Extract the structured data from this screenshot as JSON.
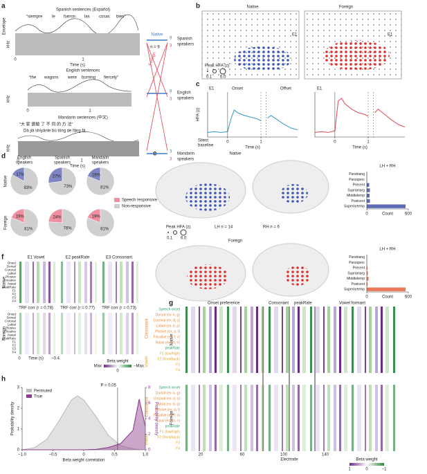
{
  "figure": {
    "panel_labels": [
      "a",
      "b",
      "c",
      "d",
      "e",
      "f",
      "g",
      "h"
    ]
  },
  "panel_a": {
    "spanish": {
      "title": "Spanish sentences (Español)",
      "words": [
        "“siempre",
        "le",
        "fueron",
        "las",
        "cosas",
        "bien”"
      ]
    },
    "english": {
      "title": "English sentences",
      "words": [
        "“the",
        "wagons",
        "were",
        "burning",
        "fiercely”"
      ]
    },
    "mandarin": {
      "title": "Mandarin sentences (中文)",
      "chars": "“大 家 實驗 了 不 同 的 方 法”",
      "pinyin": "Dà jiā shíyànle bù tóng de fāng fǎ"
    },
    "axis": {
      "envelope": "Envelope",
      "khz": "kHz",
      "time": "Time (s)",
      "t0": "0",
      "t1": "1"
    },
    "cross": {
      "native": "Native",
      "foreign": "Foreign",
      "n": "n = 9",
      "groups": [
        [
          "Spanish",
          "speakers"
        ],
        [
          "English",
          "speakers"
        ],
        [
          "Mandarin",
          "speakers"
        ]
      ],
      "native_counts": [
        "9",
        "8",
        "3"
      ],
      "foreign_counts": [
        "3",
        "3",
        "3"
      ]
    }
  },
  "panel_b": {
    "native": "Native",
    "foreign": "Foreign",
    "electrode": "E1",
    "size_title": "Peak HFA (z)",
    "size_min": "0.1",
    "size_max": "6.0"
  },
  "panel_c": {
    "electrode": "E1",
    "onset": "Onset",
    "offset": "Offset",
    "baseline": [
      "Silent",
      "baseline"
    ]
  },
  "panel_d": {
    "columns": [
      [
        "English",
        "speakers"
      ],
      [
        "Spanish",
        "speakers"
      ],
      [
        "Mandarin",
        "speakers"
      ]
    ],
    "rows": [
      "Native",
      "Foreign"
    ],
    "legend": [
      {
        "label": "Speech responsive",
        "color": "#ef8fa0"
      },
      {
        "label": "Non-responsive",
        "color": "#cfcfcf"
      }
    ]
  },
  "panel_e": {
    "native": "Native",
    "foreign": "Foreign",
    "lh": "LH n = 14",
    "rh": "RH n = 6",
    "size_title": "Peak HFA (z)",
    "size_min": "0.1",
    "size_max": "6.0"
  },
  "panel_f": {
    "titles": [
      "E1 Vowel",
      "E2 peakRate",
      "E3 Consonant"
    ],
    "features": [
      "Onset",
      "Dorsal",
      "Coronal",
      "Labial",
      "Plosive",
      "Fricative",
      "Nasal",
      "peakRate",
      "F1",
      "F2",
      "F3",
      "F4"
    ],
    "rows": [
      "Native",
      "Foreign"
    ],
    "corr": [
      "TRF corr (r = 0.78)",
      "TRF corr (r = 0.77)",
      "TRF corr (r = 0.73)"
    ],
    "t0": "0",
    "time": "Time (s)",
    "tend": "−0.4",
    "legend": {
      "title": "Beta weight",
      "max": "Max",
      "zero": "0",
      "min": "−Max"
    }
  },
  "panel_g": {
    "headers": [
      "Onset preference",
      "Consonant",
      "peakRate",
      "Vowel formant"
    ],
    "features": [
      "Speech onset",
      "Dorsal (ex. k, g)",
      "Coronal (ex. d, s)",
      "Labial (ex. b, p)",
      "Plosive (ex. p, t)",
      "Fricative (ex. f, v)",
      "Nasal (ex. m, n)",
      "peakRate",
      "F1 (low/high)",
      "F2 (front/back)",
      "F3",
      "F4"
    ],
    "groups": [
      "Consonant",
      "Vowel"
    ],
    "rows": [
      "Native",
      "Foreign"
    ],
    "xticks": [
      "20",
      "60",
      "100",
      "140"
    ],
    "xlabel": "Electrode",
    "legend": {
      "title": "Beta weight",
      "max": "1",
      "zero": "0",
      "min": "−1"
    }
  },
  "chart_data": [
    {
      "type": "pie",
      "values": [
        17,
        83
      ],
      "value_labels": [
        "17%",
        "83%"
      ],
      "colors": [
        "#7f86c4",
        "#cfcfcf"
      ]
    },
    {
      "type": "pie",
      "values": [
        27,
        73
      ],
      "value_labels": [
        "27%",
        "73%"
      ],
      "colors": [
        "#7f86c4",
        "#cfcfcf"
      ]
    },
    {
      "type": "pie",
      "values": [
        19,
        81
      ],
      "value_labels": [
        "19%",
        "81%"
      ],
      "colors": [
        "#7f86c4",
        "#cfcfcf"
      ]
    },
    {
      "type": "pie",
      "values": [
        19,
        81
      ],
      "value_labels": [
        "19%",
        "81%"
      ],
      "colors": [
        "#ef8fa0",
        "#cfcfcf"
      ]
    },
    {
      "type": "pie",
      "values": [
        24,
        76
      ],
      "value_labels": [
        "24%",
        "76%"
      ],
      "colors": [
        "#ef8fa0",
        "#cfcfcf"
      ]
    },
    {
      "type": "pie",
      "values": [
        19,
        81
      ],
      "value_labels": [
        "19%",
        "81%"
      ],
      "colors": [
        "#ef8fa0",
        "#cfcfcf"
      ]
    },
    {
      "type": "bar",
      "title": "LH + RH",
      "categories": [
        "Parstriang",
        "Parsoperc",
        "Precent",
        "Supramarg",
        "Middletemp",
        "Postcent",
        "Superiortemp"
      ],
      "values": [
        4,
        4,
        35,
        45,
        40,
        45,
        560
      ],
      "color": "#5b6cb4",
      "xlim": [
        0,
        600
      ],
      "xticks": [
        0,
        600
      ],
      "xlabel": "Count"
    },
    {
      "type": "bar",
      "title": "LH + RH",
      "categories": [
        "Parstriang",
        "Parsoperc",
        "Precent",
        "Supramarg",
        "Middletemp",
        "Postcent",
        "Superiortemp"
      ],
      "values": [
        3,
        3,
        10,
        15,
        25,
        12,
        560
      ],
      "color": "#ea7a5c",
      "xlim": [
        0,
        600
      ],
      "xticks": [
        0,
        600
      ],
      "xlabel": "Count"
    },
    {
      "type": "line",
      "x": [
        -0.6,
        -0.4,
        -0.2,
        0,
        0.1,
        0.2,
        0.3,
        0.5,
        0.7,
        0.9,
        1.0,
        1.1,
        1.2,
        1.3,
        1.5,
        1.7,
        1.9,
        2.1
      ],
      "series": [
        {
          "color": "#3a9fc8",
          "values": [
            0,
            0.1,
            0,
            0.1,
            1.5,
            2.5,
            2.2,
            1.9,
            1.7,
            1.5,
            1.3,
            null,
            1.6,
            1.9,
            1.4,
            0.9,
            0.5,
            0.3
          ]
        }
      ],
      "xlim": [
        -0.6,
        2.1
      ],
      "ylim": [
        -0.5,
        4.5
      ],
      "xticks": [
        0,
        1
      ],
      "xlabel": "Time (s)",
      "ylabel": "HFA (z)"
    },
    {
      "type": "line",
      "x": [
        -0.6,
        -0.4,
        -0.2,
        0,
        0.1,
        0.2,
        0.3,
        0.5,
        0.7,
        0.9,
        1.0,
        1.1,
        1.2,
        1.3,
        1.5,
        1.7,
        1.9,
        2.1
      ],
      "series": [
        {
          "color": "#e0505e",
          "values": [
            0,
            0.1,
            0,
            0.2,
            3.5,
            3.8,
            3.2,
            2.6,
            2.2,
            2.0,
            1.8,
            null,
            2.2,
            2.6,
            2.0,
            1.4,
            0.9,
            0.6
          ]
        }
      ],
      "xlim": [
        -0.6,
        2.1
      ],
      "ylim": [
        -0.5,
        4.5
      ],
      "xticks": [
        0,
        1
      ],
      "xlabel": "Time (s)"
    },
    {
      "type": "line",
      "fill": true,
      "x": [
        -1,
        -0.8,
        -0.6,
        -0.4,
        -0.2,
        -0.1,
        0,
        0.2,
        0.4,
        0.6,
        0.8,
        0.9,
        1
      ],
      "series": [
        {
          "name": "Permuted",
          "color": "#bdbdbd",
          "values": [
            0,
            0.1,
            0.5,
            1.4,
            2.4,
            2.6,
            2.4,
            1.6,
            0.7,
            0.2,
            0.05,
            0.02,
            0
          ]
        },
        {
          "name": "True",
          "color": "#8e3c8e",
          "axis": "y2",
          "values": [
            0,
            0,
            0,
            0,
            0,
            0,
            0,
            0.05,
            0.3,
            0.8,
            2.5,
            6.5,
            3
          ]
        }
      ],
      "xlim": [
        -1,
        1
      ],
      "ylim": [
        0,
        3
      ],
      "yticks": [
        0,
        1,
        2,
        3
      ],
      "y2lim": [
        0,
        8
      ],
      "y2ticks": [
        0,
        2,
        4,
        6,
        8
      ],
      "xticks": [
        {
          "value": -1,
          "label": "−1.0"
        },
        {
          "value": -0.5,
          "label": "−0.5"
        },
        0,
        0.5,
        {
          "value": 1,
          "label": "1.0"
        }
      ],
      "xlabel": "Beta weight correlation",
      "ylabel": "Probability density",
      "y2label": "Probability density",
      "annotations": [
        {
          "x": 0.55,
          "text": "P = 0.05"
        }
      ]
    }
  ]
}
